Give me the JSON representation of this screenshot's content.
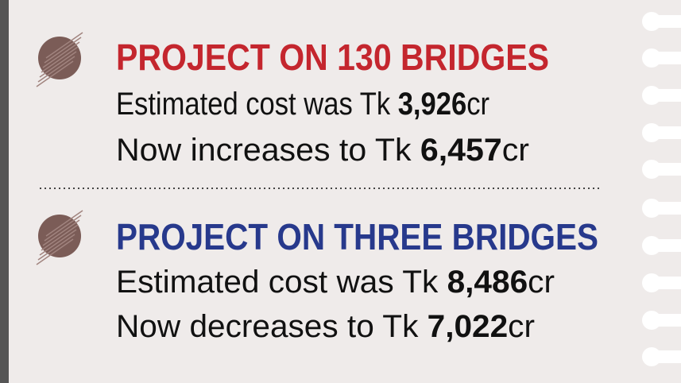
{
  "projects": [
    {
      "title": "PROJECT ON 130 BRIDGES",
      "color": "#c4262e",
      "lines": [
        {
          "prefix": "Estimated cost was Tk ",
          "amount": "3,926",
          "unit": "cr"
        },
        {
          "prefix": "Now increases to Tk ",
          "amount": "6,457",
          "unit": "cr"
        }
      ]
    },
    {
      "title": "PROJECT ON THREE BRIDGES",
      "color": "#27398c",
      "lines": [
        {
          "prefix": "Estimated cost was Tk ",
          "amount": "8,486",
          "unit": "cr"
        },
        {
          "prefix": "Now decreases to Tk ",
          "amount": "7,022",
          "unit": "cr"
        }
      ]
    }
  ]
}
